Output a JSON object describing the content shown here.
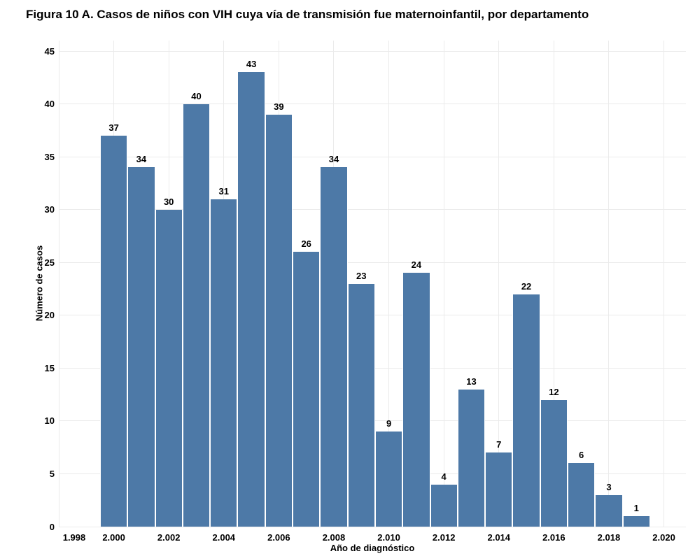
{
  "chart_data": {
    "type": "bar",
    "title": "Figura 10 A. Casos de niños con VIH cuya vía de transmisión fue maternoinfantil, por departamento",
    "xlabel": "Año de diagnóstico",
    "ylabel": "Número de casos",
    "categories": [
      2000,
      2001,
      2002,
      2003,
      2004,
      2005,
      2006,
      2007,
      2008,
      2009,
      2010,
      2011,
      2012,
      2013,
      2014,
      2015,
      2016,
      2017,
      2018,
      2019
    ],
    "values": [
      37,
      34,
      30,
      40,
      31,
      43,
      39,
      26,
      34,
      23,
      9,
      24,
      4,
      13,
      7,
      22,
      12,
      6,
      3,
      1
    ],
    "bar_value_labels": [
      "37",
      "34",
      "30",
      "40",
      "31",
      "43",
      "39",
      "26",
      "34",
      "23",
      "9",
      "24",
      "4",
      "13",
      "7",
      "22",
      "12",
      "6",
      "3",
      "1"
    ],
    "x_tick_values": [
      1998,
      2000,
      2002,
      2004,
      2006,
      2008,
      2010,
      2012,
      2014,
      2016,
      2018,
      2020
    ],
    "x_tick_labels": [
      "1.998",
      "2.000",
      "2.002",
      "2.004",
      "2.006",
      "2.008",
      "2.010",
      "2.012",
      "2.014",
      "2.016",
      "2.018",
      "2.020"
    ],
    "y_tick_values": [
      0,
      5,
      10,
      15,
      20,
      25,
      30,
      35,
      40,
      45
    ],
    "y_tick_labels": [
      "0",
      "5",
      "10",
      "15",
      "20",
      "25",
      "30",
      "35",
      "40",
      "45"
    ],
    "xlim": [
      1998.0,
      2020.8
    ],
    "ylim": [
      0,
      46
    ],
    "bin_width": 1,
    "grid": true,
    "legend": false,
    "bar_color": "#4d79a7",
    "bar_border_color": "#ffffff",
    "gridline_color": "#ebebeb",
    "text_color": "#000000",
    "background_color": "#ffffff"
  }
}
